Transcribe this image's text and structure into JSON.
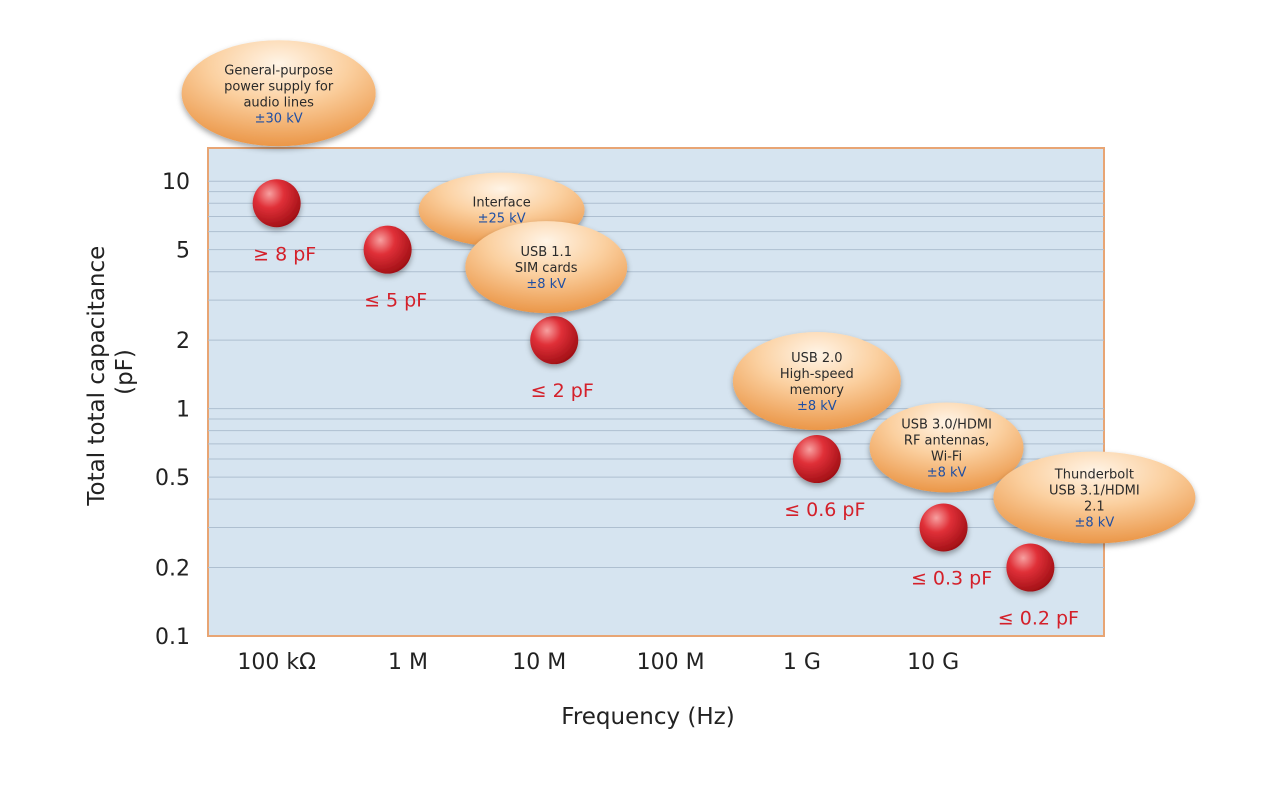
{
  "chart_data": {
    "type": "scatter",
    "title": "",
    "xlabel": "Frequency (Hz)",
    "ylabel_lines": [
      "Total total capacitance",
      "(pF)"
    ],
    "x_scale": "log",
    "y_scale": "log",
    "xlim": [
      30000,
      200000000000
    ],
    "ylim": [
      0.1,
      14
    ],
    "x_ticks": [
      {
        "value": 100000,
        "label": "100 kΩ"
      },
      {
        "value": 1000000,
        "label": "1 M"
      },
      {
        "value": 10000000,
        "label": "10 M"
      },
      {
        "value": 100000000,
        "label": "100 M"
      },
      {
        "value": 1000000000,
        "label": "1 G"
      },
      {
        "value": 10000000000,
        "label": "10 G"
      }
    ],
    "y_ticks": [
      {
        "value": 10,
        "label": "10"
      },
      {
        "value": 5,
        "label": "5"
      },
      {
        "value": 2,
        "label": "2"
      },
      {
        "value": 1,
        "label": "1"
      },
      {
        "value": 0.5,
        "label": "0.5"
      },
      {
        "value": 0.2,
        "label": "0.2"
      },
      {
        "value": 0.1,
        "label": "0.1"
      }
    ],
    "grid": true,
    "points": [
      {
        "x": 100000,
        "y": 8,
        "label": "≥ 8 pF",
        "category_lines": [
          "General-purpose",
          "power supply for",
          "audio lines"
        ],
        "esd": "±30 kV"
      },
      {
        "x": 700000,
        "y": 5,
        "label": "≤ 5 pF",
        "category_lines": [
          "Interface"
        ],
        "esd": "±25 kV"
      },
      {
        "x": 13000000,
        "y": 2,
        "label": "≤ 2 pF",
        "category_lines": [
          "USB 1.1",
          "SIM cards"
        ],
        "esd": "±8 kV"
      },
      {
        "x": 1300000000,
        "y": 0.6,
        "label": "≤ 0.6 pF",
        "category_lines": [
          "USB 2.0",
          "High-speed",
          "memory"
        ],
        "esd": "±8 kV"
      },
      {
        "x": 12000000000,
        "y": 0.3,
        "label": "≤ 0.3 pF",
        "category_lines": [
          "USB 3.0/HDMI",
          "RF antennas,",
          "Wi-Fi"
        ],
        "esd": "±8 kV"
      },
      {
        "x": 55000000000,
        "y": 0.2,
        "label": "≤ 0.2 pF",
        "category_lines": [
          "Thunderbolt",
          "USB 3.1/HDMI",
          "2.1"
        ],
        "esd": "±8 kV"
      }
    ]
  },
  "colors": {
    "plot_background": "#d6e4f0",
    "plot_border": "#e8a574",
    "grid": "#aebfd0",
    "marker": "#cc1a22",
    "marker_highlight": "#f28a8a",
    "cap_label": "#d4202a",
    "bubble_light": "#fde3c4",
    "bubble_dark": "#f0a45e",
    "esd_text": "#1f4fa3"
  }
}
